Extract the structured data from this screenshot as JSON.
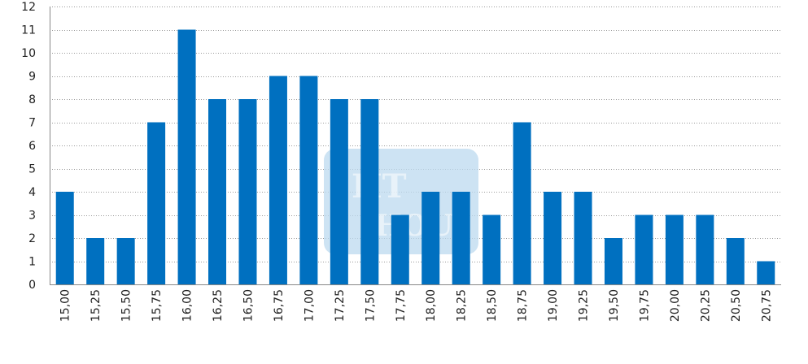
{
  "chart_data": {
    "type": "bar",
    "title": "",
    "xlabel": "",
    "ylabel": "",
    "categories": [
      "15,00",
      "15,25",
      "15,50",
      "15,75",
      "16,00",
      "16,25",
      "16,50",
      "16,75",
      "17,00",
      "17,25",
      "17,50",
      "17,75",
      "18,00",
      "18,25",
      "18,50",
      "18,75",
      "19,00",
      "19,25",
      "19,50",
      "19,75",
      "20,00",
      "20,25",
      "20,50",
      "20,75"
    ],
    "values": [
      4,
      2,
      2,
      7,
      11,
      8,
      8,
      9,
      9,
      8,
      8,
      3,
      4,
      4,
      3,
      7,
      4,
      4,
      2,
      3,
      3,
      3,
      2,
      1
    ],
    "ylim": [
      0,
      12
    ],
    "yticks": [
      0,
      1,
      2,
      3,
      4,
      5,
      6,
      7,
      8,
      9,
      10,
      11,
      12
    ],
    "grid": true,
    "bar_color": "#0070c0",
    "legend": "none"
  },
  "watermark": {
    "line1": "HT",
    "line2": "HOU",
    "color": "#bcd9ef"
  }
}
